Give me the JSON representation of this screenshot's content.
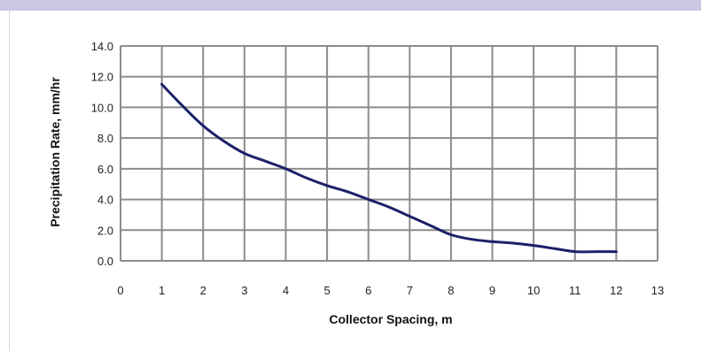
{
  "chart_data": {
    "type": "line",
    "title": "",
    "xlabel": "Collector Spacing, m",
    "ylabel": "Precipitation Rate, mm/hr",
    "xlim": [
      0,
      13
    ],
    "ylim": [
      0,
      14
    ],
    "x_ticks": [
      "0",
      "1",
      "2",
      "3",
      "4",
      "5",
      "6",
      "7",
      "8",
      "9",
      "10",
      "11",
      "12",
      "13"
    ],
    "y_ticks": [
      "0.0",
      "2.0",
      "4.0",
      "6.0",
      "8.0",
      "10.0",
      "12.0",
      "14.0"
    ],
    "grid": true,
    "legend": "none",
    "series": [
      {
        "color": "#1c2068",
        "x": [
          1,
          1.5,
          2,
          2.5,
          3,
          3.5,
          4,
          4.5,
          5,
          5.5,
          6,
          6.5,
          7,
          7.5,
          8,
          8.5,
          9,
          9.5,
          10,
          10.5,
          11,
          11.5,
          12
        ],
        "y": [
          11.5,
          10.1,
          8.8,
          7.8,
          7.0,
          6.5,
          6.0,
          5.4,
          4.9,
          4.5,
          4.0,
          3.5,
          2.9,
          2.3,
          1.7,
          1.4,
          1.25,
          1.15,
          1.0,
          0.8,
          0.6,
          0.6,
          0.6
        ]
      }
    ]
  }
}
